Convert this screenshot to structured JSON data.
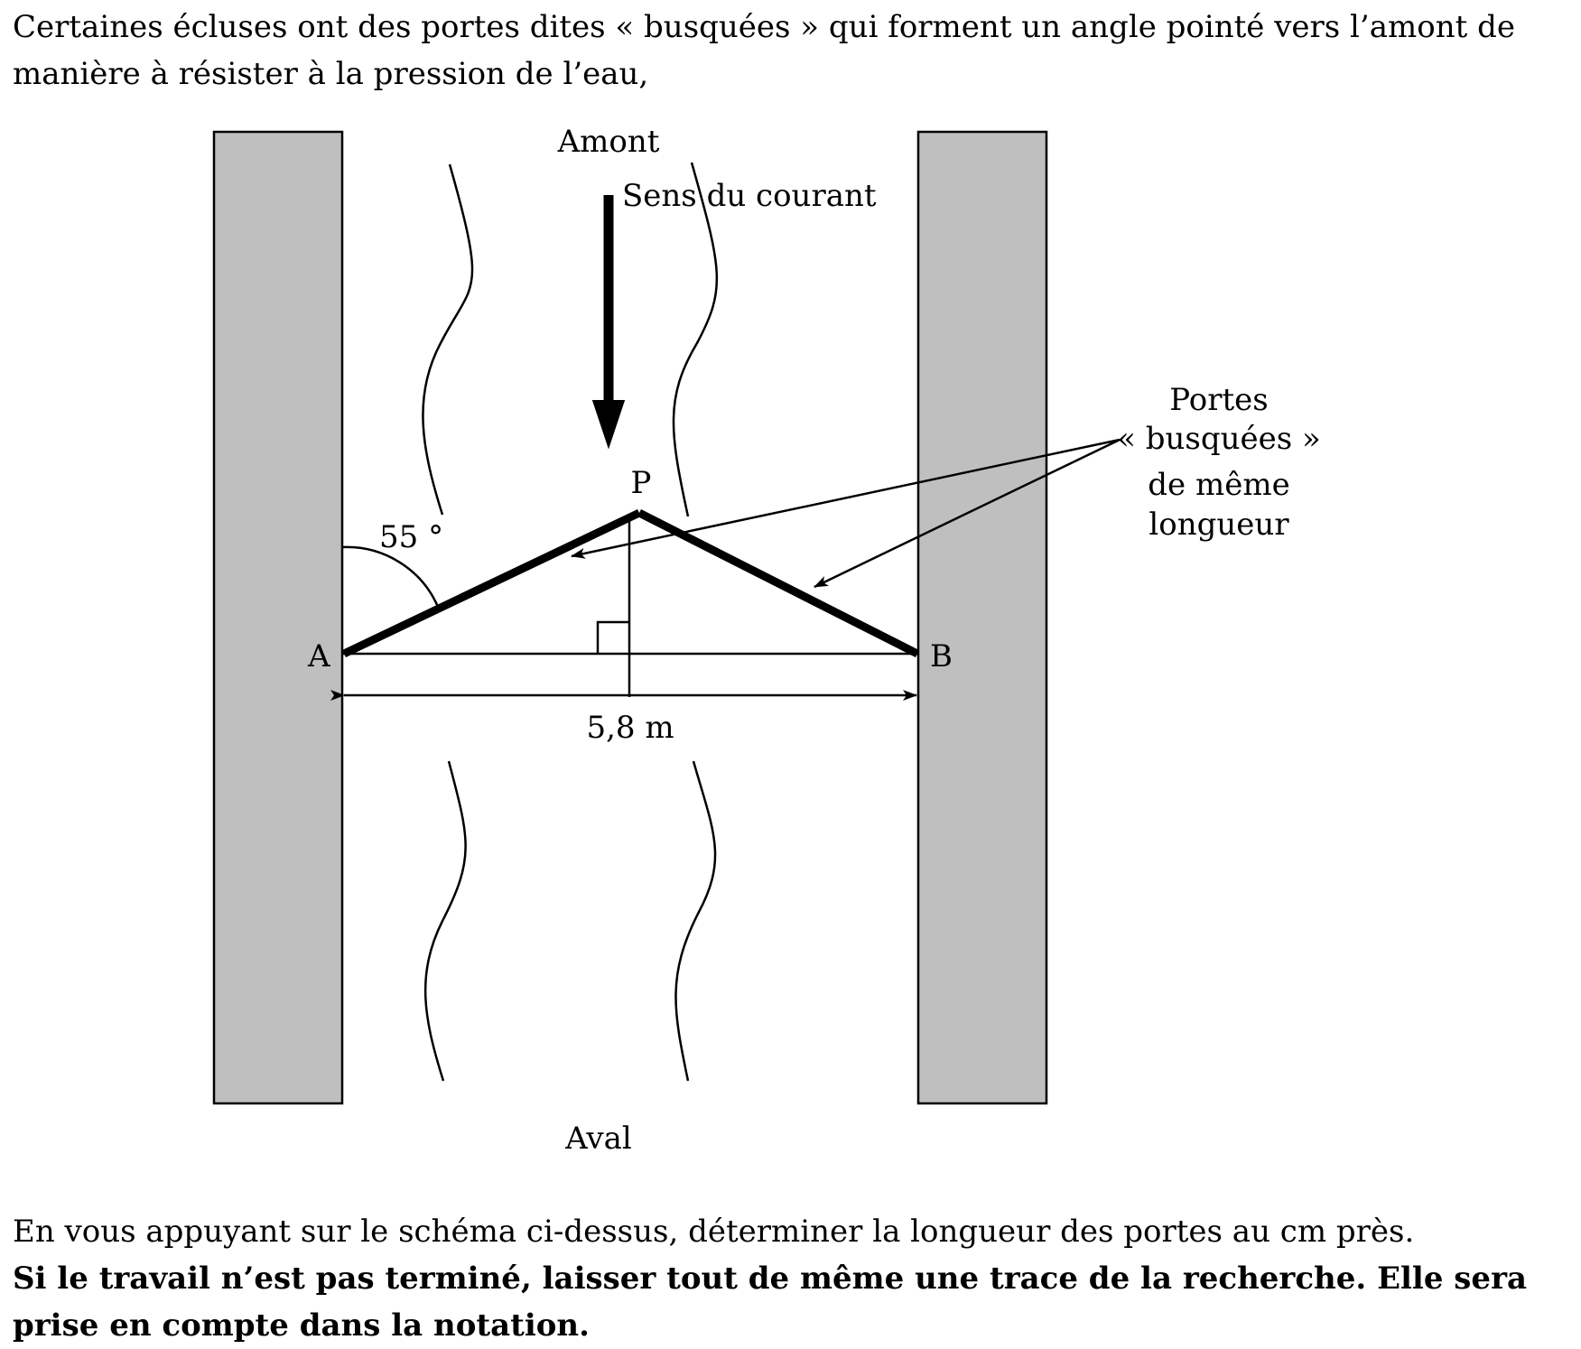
{
  "text": {
    "intro": "Certaines écluses ont des portes dites « busquées » qui forment un angle pointé vers l’amont de manière à résister à la pression de l’eau,",
    "question": "En vous appuyant sur le schéma ci-dessus, déterminer la longueur des portes au cm près.",
    "note": "Si le travail n’est pas terminé, laisser tout de même une trace de la recherche. Elle sera prise en compte dans la notation."
  },
  "diagram": {
    "upstream": "Amont",
    "downstream": "Aval",
    "current": "Sens du courant",
    "point_a": "A",
    "point_b": "B",
    "point_p": "P",
    "angle": "55 °",
    "width": "5,8 m",
    "gates_line1": "Portes",
    "gates_line2": "« busquées »",
    "gates_line3": "de même",
    "gates_line4": "longueur"
  },
  "colors": {
    "wall": "#bfbfbf",
    "ink": "#000000"
  }
}
